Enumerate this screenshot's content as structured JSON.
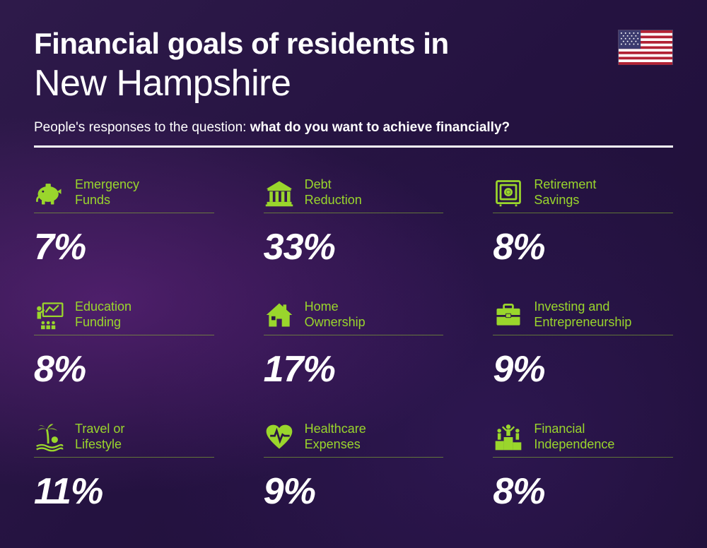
{
  "title_line1": "Financial goals of residents in",
  "title_line2": "New Hampshire",
  "subtitle_prefix": "People's responses to the question: ",
  "subtitle_bold": "what do you want to achieve financially?",
  "accent_color": "#9ad62c",
  "text_color": "#ffffff",
  "items": [
    {
      "label": "Emergency Funds",
      "value": "7%",
      "icon": "piggy-bank"
    },
    {
      "label": "Debt Reduction",
      "value": "33%",
      "icon": "bank"
    },
    {
      "label": "Retirement Savings",
      "value": "8%",
      "icon": "safe"
    },
    {
      "label": "Education Funding",
      "value": "8%",
      "icon": "presentation"
    },
    {
      "label": "Home Ownership",
      "value": "17%",
      "icon": "house"
    },
    {
      "label": "Investing and Entrepreneurship",
      "value": "9%",
      "icon": "briefcase"
    },
    {
      "label": "Travel or Lifestyle",
      "value": "11%",
      "icon": "palm"
    },
    {
      "label": "Healthcare Expenses",
      "value": "9%",
      "icon": "heart-pulse"
    },
    {
      "label": "Financial Independence",
      "value": "8%",
      "icon": "podium"
    }
  ],
  "flag": "usa"
}
